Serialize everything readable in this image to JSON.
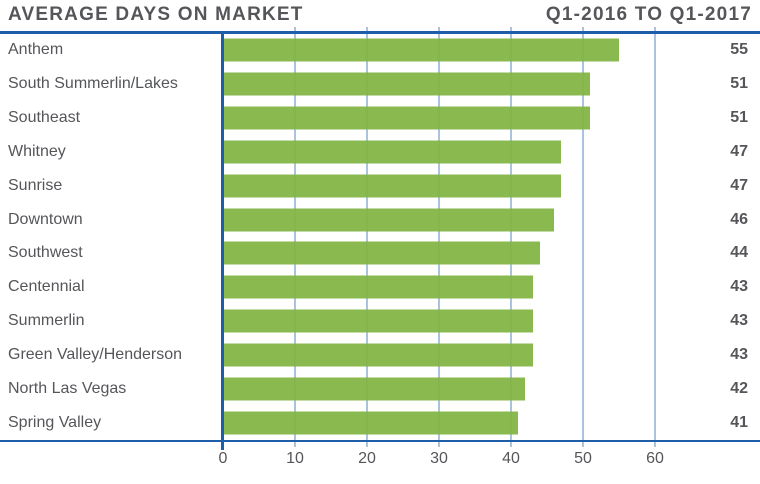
{
  "header": {
    "title": "AVERAGE DAYS ON MARKET",
    "period": "Q1-2016 TO Q1-2017"
  },
  "chart_data": {
    "type": "bar",
    "orientation": "horizontal",
    "title": "AVERAGE DAYS ON MARKET",
    "subtitle": "Q1-2016 TO Q1-2017",
    "categories": [
      "Anthem",
      "South Summerlin/Lakes",
      "Southeast",
      "Whitney",
      "Sunrise",
      "Downtown",
      "Southwest",
      "Centennial",
      "Summerlin",
      "Green Valley/Henderson",
      "North Las Vegas",
      "Spring Valley"
    ],
    "values": [
      55,
      51,
      51,
      47,
      47,
      46,
      44,
      43,
      43,
      43,
      42,
      41
    ],
    "xlabel": "",
    "ylabel": "",
    "xticks": [
      0,
      10,
      20,
      30,
      40,
      50,
      60
    ],
    "xlim": [
      0,
      74
    ],
    "grid": true,
    "legend_position": "none",
    "value_labels_shown": true,
    "colors": {
      "bar": "#83b546",
      "axis": "#1e5da7",
      "gridline": "#abc3de",
      "text": "#55565a"
    }
  }
}
